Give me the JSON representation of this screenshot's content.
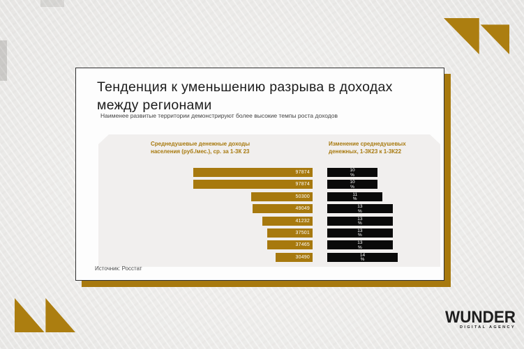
{
  "slide": {
    "title": "Тенденция к уменьшению разрыва в доходах между регионами",
    "subtitle": "Наименее развитые территории демонстрируют более высокие темпы роста доходов",
    "source": "Источник: Росстат"
  },
  "chart_data": {
    "type": "bar",
    "orientation": "horizontal",
    "grid": false,
    "legend_position": "none",
    "category_labels_visible": false,
    "left_header": "Среднедушевые денежные доходы\nнаселения (руб./мес.), ср. за 1-3К 23",
    "right_header": "Изменение  среднедушевых\nденежных, 1-3К23 к 1-3К22",
    "unit_right": "%",
    "series": [
      {
        "name": "Среднедушевые денежные доходы населения, руб./мес.",
        "values": [
          97874,
          97874,
          50300,
          49049,
          41232,
          37501,
          37465,
          30490
        ]
      },
      {
        "name": "Изменение среднедушевых денежных, 1-3К23 к 1-3К22, %",
        "values": [
          10,
          10,
          11,
          13,
          13,
          13,
          13,
          14
        ]
      }
    ]
  },
  "logo": {
    "name": "WUNDER",
    "tagline": "DIGITAL AGENCY"
  },
  "colors": {
    "gold": "#A7790E",
    "corner_gold": "#AC7E10",
    "black_bar": "#0A0A0A",
    "panel_bg": "#F1EFEE",
    "header_text": "#A7790E",
    "background": "#ECEBE9",
    "card_bg": "#FDFDFD"
  }
}
